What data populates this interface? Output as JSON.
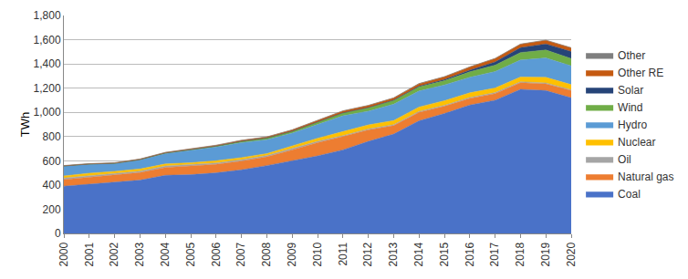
{
  "chart_data": {
    "type": "area",
    "stacked": true,
    "y_label": "TWh",
    "categories": [
      "2000",
      "2001",
      "2002",
      "2003",
      "2004",
      "2005",
      "2006",
      "2007",
      "2008",
      "2009",
      "2010",
      "2011",
      "2012",
      "2013",
      "2014",
      "2015",
      "2016",
      "2017",
      "2018",
      "2019",
      "2020"
    ],
    "ylim": [
      0,
      1800
    ],
    "yticks": [
      0,
      200,
      400,
      600,
      800,
      {
        "value": 1000,
        "label": "1,000"
      },
      {
        "value": 1200,
        "label": "1,200"
      },
      {
        "value": 1400,
        "label": "1,400"
      },
      {
        "value": 1600,
        "label": "1,600"
      },
      {
        "value": 1800,
        "label": "1,800"
      }
    ],
    "grid": true,
    "legend": "right",
    "series": [
      {
        "name": "Coal",
        "color": "#4a72c8",
        "values": [
          390,
          405,
          420,
          440,
          480,
          485,
          500,
          525,
          560,
          600,
          640,
          690,
          760,
          820,
          930,
          990,
          1060,
          1100,
          1190,
          1180,
          1120
        ]
      },
      {
        "name": "Natural gas",
        "color": "#ed7d31",
        "values": [
          55,
          60,
          62,
          62,
          65,
          70,
          70,
          72,
          72,
          90,
          110,
          110,
          95,
          70,
          70,
          60,
          55,
          55,
          55,
          55,
          60
        ]
      },
      {
        "name": "Oil",
        "color": "#a5a5a5",
        "values": [
          13,
          13,
          12,
          12,
          12,
          12,
          12,
          12,
          12,
          12,
          10,
          8,
          8,
          8,
          8,
          8,
          8,
          8,
          8,
          8,
          6
        ]
      },
      {
        "name": "Nuclear",
        "color": "#ffc000",
        "values": [
          17,
          19,
          19,
          18,
          17,
          17,
          18,
          17,
          15,
          19,
          26,
          33,
          33,
          34,
          36,
          38,
          38,
          38,
          39,
          46,
          43
        ]
      },
      {
        "name": "Hydro",
        "color": "#5b9bd5",
        "values": [
          80,
          74,
          64,
          75,
          85,
          100,
          113,
          123,
          115,
          107,
          114,
          130,
          114,
          135,
          132,
          130,
          128,
          136,
          140,
          160,
          155
        ]
      },
      {
        "name": "Wind",
        "color": "#70ad47",
        "values": [
          2,
          2,
          2,
          3,
          5,
          6,
          8,
          12,
          14,
          16,
          20,
          24,
          28,
          30,
          34,
          35,
          45,
          53,
          62,
          66,
          60
        ]
      },
      {
        "name": "Solar",
        "color": "#264478",
        "values": [
          0,
          0,
          0,
          0,
          0,
          0,
          0,
          0,
          0,
          0,
          0,
          1,
          2,
          4,
          6,
          10,
          15,
          26,
          40,
          50,
          58
        ]
      },
      {
        "name": "Other RE",
        "color": "#c55a11",
        "values": [
          2,
          2,
          3,
          3,
          4,
          5,
          6,
          7,
          8,
          10,
          12,
          15,
          16,
          17,
          20,
          22,
          25,
          28,
          28,
          30,
          30
        ]
      },
      {
        "name": "Other",
        "color": "#7f7f7f",
        "values": [
          2,
          2,
          2,
          2,
          2,
          2,
          2,
          2,
          2,
          2,
          2,
          2,
          2,
          2,
          2,
          2,
          2,
          2,
          2,
          2,
          2
        ]
      }
    ]
  }
}
